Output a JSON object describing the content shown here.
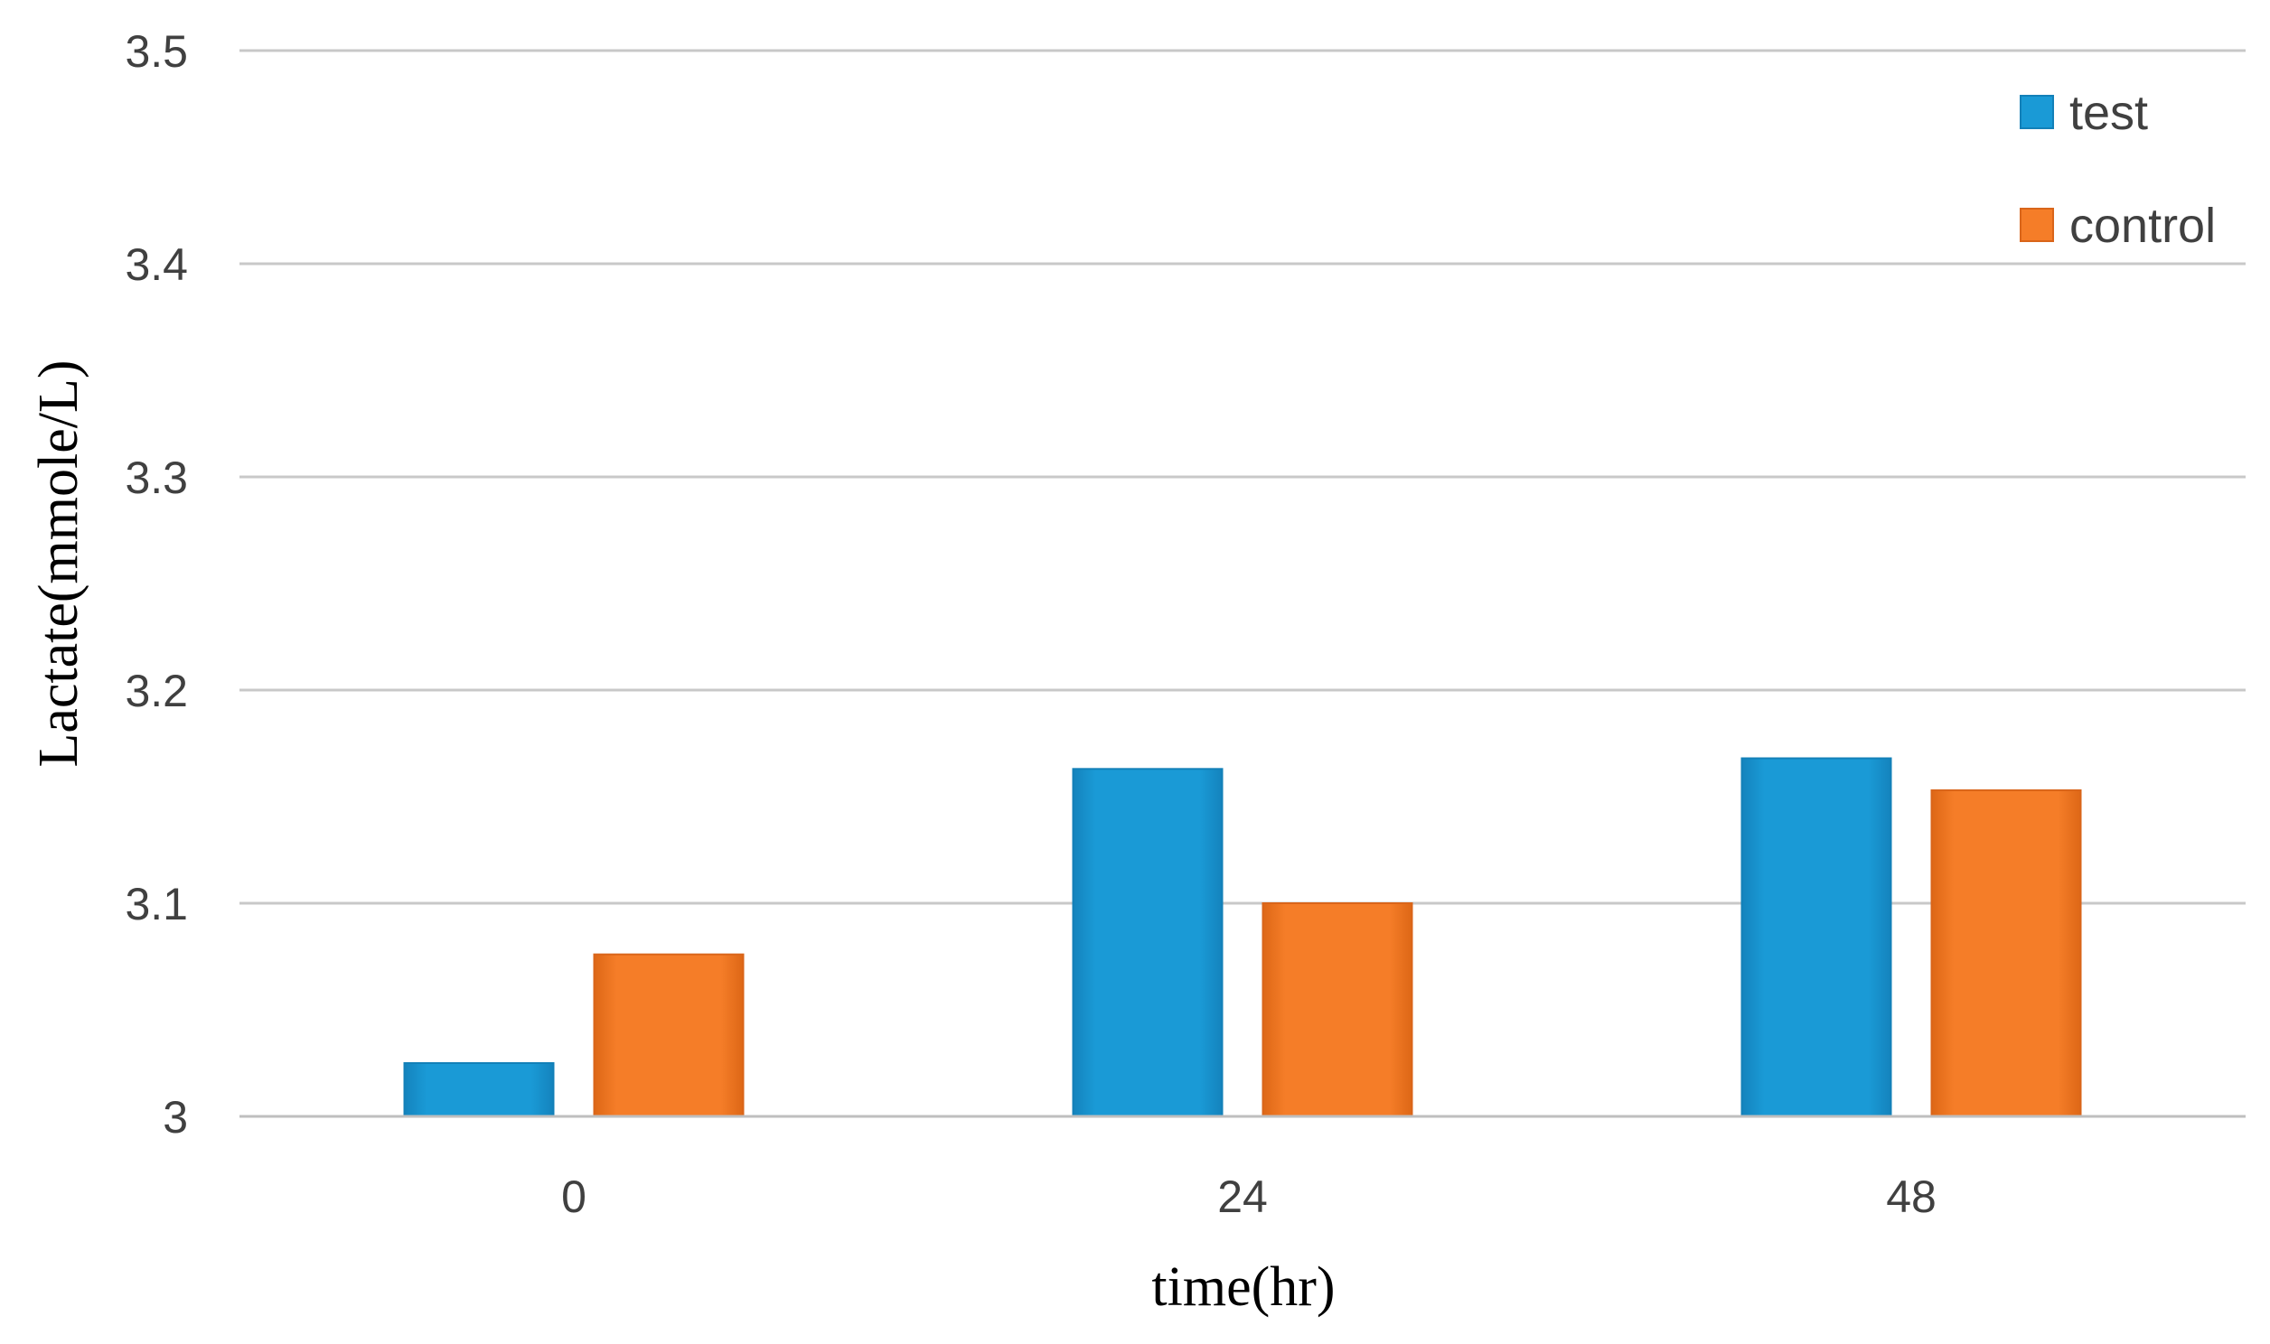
{
  "chart_data": {
    "type": "bar",
    "categories": [
      "0",
      "24",
      "48"
    ],
    "series": [
      {
        "name": "test",
        "values": [
          3.025,
          3.163,
          3.168
        ],
        "color": "#1a9ad6"
      },
      {
        "name": "control",
        "values": [
          3.076,
          3.1,
          3.153
        ],
        "color": "#f57d28"
      }
    ],
    "xlabel": "time(hr)",
    "ylabel": "Lactate(mmole/L)",
    "ylim": [
      3,
      3.5
    ],
    "yticks": [
      "3",
      "3.1",
      "3.2",
      "3.3",
      "3.4",
      "3.5"
    ],
    "grid": true,
    "legend_position": "top-right"
  }
}
